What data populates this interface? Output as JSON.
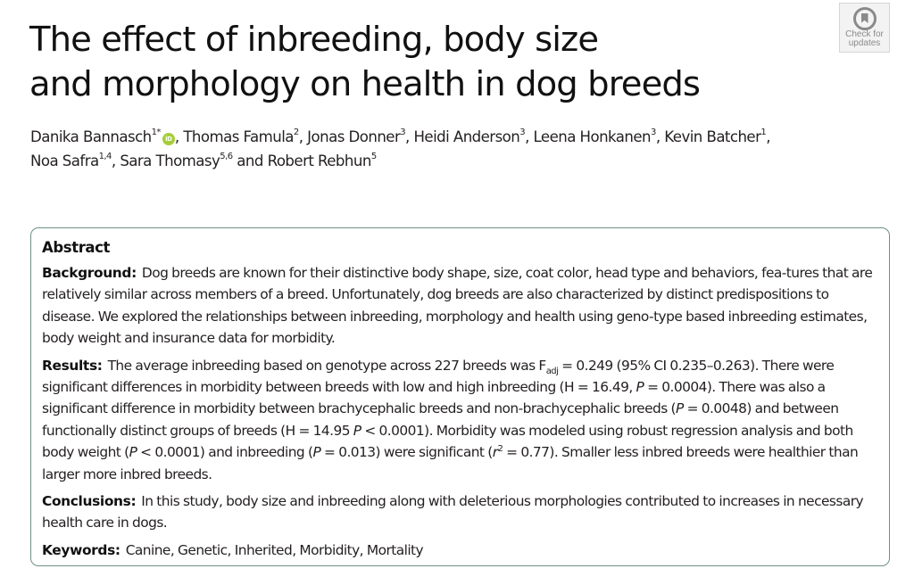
{
  "paper": {
    "title_line1": "The effect of inbreeding, body size",
    "title_line2": "and morphology on health in dog breeds",
    "check_updates": {
      "icon": "crossmark-icon",
      "line1": "Check for",
      "line2": "updates"
    },
    "authors": [
      {
        "name": "Danika Bannasch",
        "sup": "1*",
        "orcid": true,
        "sep": ", "
      },
      {
        "name": "Thomas Famula",
        "sup": "2",
        "sep": ", "
      },
      {
        "name": "Jonas Donner",
        "sup": "3",
        "sep": ", "
      },
      {
        "name": "Heidi Anderson",
        "sup": "3",
        "sep": ", "
      },
      {
        "name": "Leena Honkanen",
        "sup": "3",
        "sep": ", "
      },
      {
        "name": "Kevin Batcher",
        "sup": "1",
        "sep": ","
      },
      {
        "name": "Noa Safra",
        "sup": "1,4",
        "sep": ", "
      },
      {
        "name": "Sara Thomasy",
        "sup": "5,6",
        "sep": " and "
      },
      {
        "name": "Robert Rebhun",
        "sup": "5",
        "sep": ""
      }
    ],
    "orcid_label": "iD",
    "abstract": {
      "heading": "Abstract",
      "background": {
        "label": "Background:",
        "text": "Dog breeds are known for their distinctive body shape, size, coat color, head type and behaviors, fea-tures that are relatively similar across members of a breed. Unfortunately, dog breeds are also characterized by distinct predispositions to disease. We explored the relationships between inbreeding, morphology and health using geno-type based inbreeding estimates, body weight and insurance data for morbidity."
      },
      "results": {
        "label": "Results:",
        "t1": "The average inbreeding based on genotype across 227 breeds was F",
        "sub": "adj",
        "t2": " = 0.249 (95% CI 0.235–0.263). There were significant differences in morbidity between breeds with low and high inbreeding (H = 16.49, ",
        "p1": "P",
        "t3": " = 0.0004). There was also a significant difference in morbidity between brachycephalic breeds and non-brachycephalic breeds (",
        "p2": "P",
        "t4": " = 0.0048) and between functionally distinct groups of breeds (H = 14.95 ",
        "p3": "P",
        "t5": " < 0.0001). Morbidity was modeled using robust regression analysis and both body weight (",
        "p4": "P",
        "t6": " < 0.0001) and inbreeding (",
        "p5": "P",
        "t7": " = 0.013) were significant (",
        "r": "r",
        "rsup": "2",
        "t8": " = 0.77). Smaller less inbred breeds were healthier than larger more inbred breeds."
      },
      "conclusions": {
        "label": "Conclusions:",
        "text": "In this study, body size and inbreeding along with deleterious morphologies contributed to increases in necessary health care in dogs."
      },
      "keywords": {
        "label": "Keywords:",
        "text": "Canine, Genetic, Inherited, Morbidity, Mortality"
      }
    }
  },
  "colors": {
    "border": "#6f8f88",
    "orcid": "#a6ce39",
    "text": "#231f20"
  }
}
